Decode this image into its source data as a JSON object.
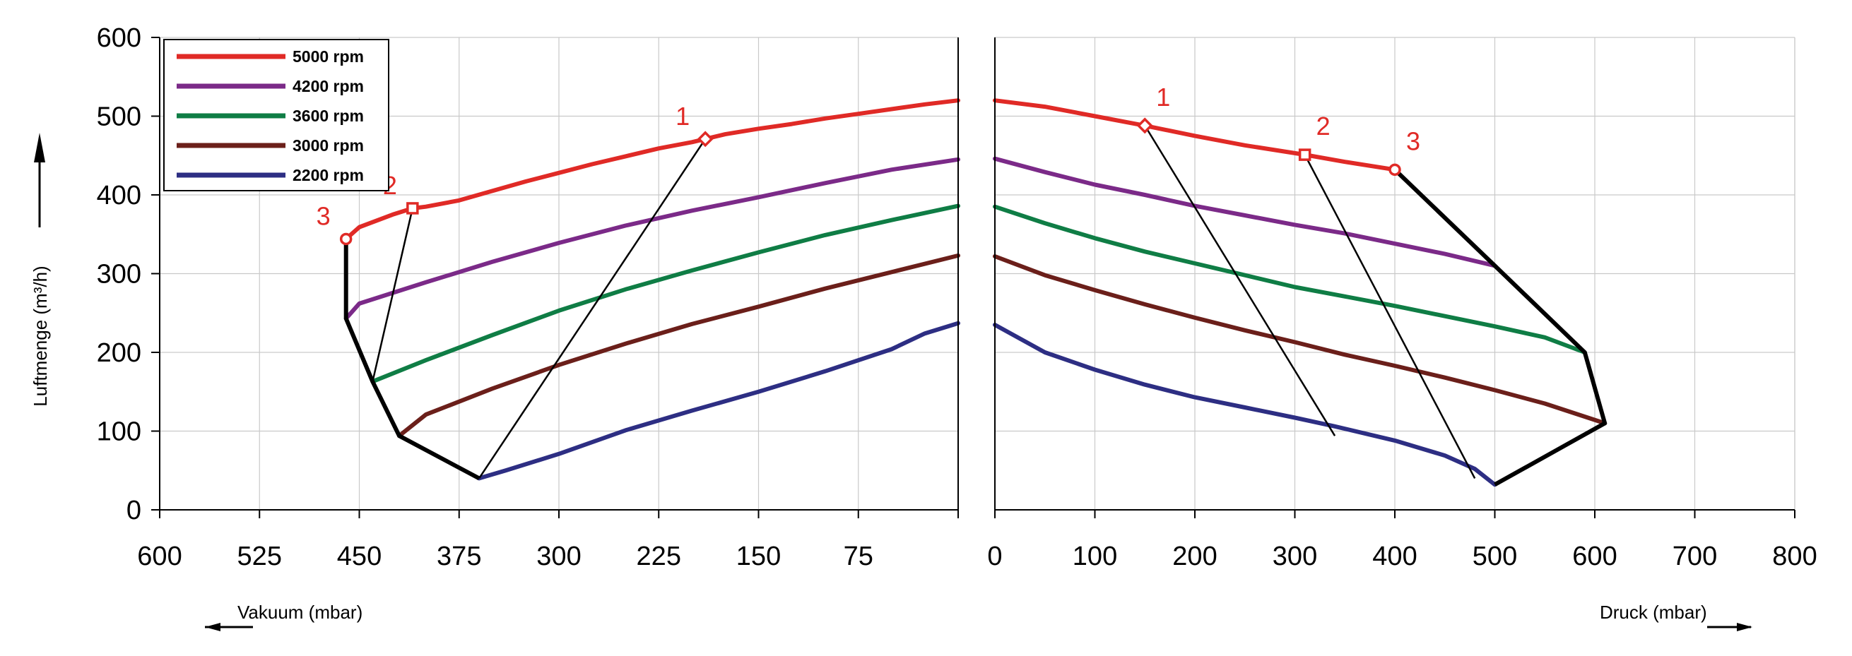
{
  "chart_data": {
    "type": "line",
    "ylabel": "Luftmenge (m³/h)",
    "ylim": [
      0,
      600
    ],
    "yticks": [
      "0",
      "100",
      "200",
      "300",
      "400",
      "500",
      "600"
    ],
    "grid": true,
    "legend_position": "top-left",
    "panels": [
      {
        "xlabel": "Vakuum (mbar)",
        "xlim": [
          600,
          0
        ],
        "xticks": [
          "600",
          "525",
          "450",
          "375",
          "300",
          "225",
          "150",
          "75"
        ],
        "series": [
          {
            "name": "5000 rpm",
            "color": "#e02a26",
            "x": [
              0,
              25,
              50,
              75,
              100,
              125,
              150,
              175,
              190,
              200,
              225,
              250,
              275,
              300,
              325,
              350,
              375,
              400,
              410,
              425,
              450,
              460
            ],
            "y": [
              520,
              515,
              509,
              503,
              497,
              490,
              484,
              477,
              471,
              467,
              459,
              449,
              439,
              428,
              417,
              405,
              393,
              385,
              383,
              375,
              359,
              344
            ]
          },
          {
            "name": "4200 rpm",
            "color": "#7b2a88",
            "x": [
              0,
              50,
              100,
              150,
              200,
              250,
              300,
              350,
              400,
              450,
              460
            ],
            "y": [
              445,
              432,
              415,
              397,
              380,
              361,
              339,
              315,
              289,
              262,
              243
            ]
          },
          {
            "name": "3600 rpm",
            "color": "#0f7d45",
            "x": [
              0,
              50,
              100,
              150,
              200,
              250,
              300,
              350,
              400,
              440
            ],
            "y": [
              386,
              368,
              349,
              327,
              304,
              280,
              253,
              222,
              190,
              163
            ]
          },
          {
            "name": "3000 rpm",
            "color": "#6b1f1a",
            "x": [
              0,
              50,
              100,
              150,
              200,
              250,
              300,
              350,
              400,
              420
            ],
            "y": [
              323,
              302,
              281,
              258,
              236,
              211,
              184,
              154,
              121,
              94
            ]
          },
          {
            "name": "2200 rpm",
            "color": "#2d2e83",
            "x": [
              0,
              25,
              50,
              100,
              150,
              200,
              250,
              300,
              340,
              360
            ],
            "y": [
              237,
              224,
              204,
              176,
              150,
              126,
              101,
              71,
              50,
              40
            ]
          }
        ],
        "points": [
          {
            "label": "1",
            "marker": "diamond",
            "x": 190,
            "y": 471
          },
          {
            "label": "2",
            "marker": "square",
            "x": 410,
            "y": 383
          },
          {
            "label": "3",
            "marker": "circle",
            "x": 460,
            "y": 344
          }
        ],
        "thin_lines": [
          [
            [
              190,
              471
            ],
            [
              360,
              40
            ]
          ],
          [
            [
              410,
              383
            ],
            [
              440,
              163
            ]
          ]
        ],
        "envelope": [
          [
            460,
            344
          ],
          [
            460,
            243
          ],
          [
            440,
            163
          ],
          [
            420,
            94
          ],
          [
            360,
            40
          ]
        ]
      },
      {
        "xlabel": "Druck (mbar)",
        "xlim": [
          0,
          800
        ],
        "xticks": [
          "0",
          "100",
          "200",
          "300",
          "400",
          "500",
          "600",
          "700",
          "800"
        ],
        "series": [
          {
            "name": "5000 rpm",
            "color": "#e02a26",
            "x": [
              0,
              50,
              100,
              150,
              200,
              250,
              310,
              350,
              400
            ],
            "y": [
              520,
              512,
              500,
              488,
              475,
              463,
              451,
              442,
              432
            ]
          },
          {
            "name": "4200 rpm",
            "color": "#7b2a88",
            "x": [
              0,
              50,
              100,
              150,
              200,
              250,
              300,
              350,
              400,
              450,
              500
            ],
            "y": [
              446,
              429,
              413,
              400,
              386,
              374,
              362,
              351,
              338,
              325,
              310
            ]
          },
          {
            "name": "3600 rpm",
            "color": "#0f7d45",
            "x": [
              0,
              50,
              100,
              150,
              200,
              250,
              300,
              350,
              400,
              450,
              500,
              550,
              590
            ],
            "y": [
              385,
              364,
              345,
              328,
              313,
              298,
              283,
              271,
              259,
              246,
              233,
              219,
              200
            ]
          },
          {
            "name": "3000 rpm",
            "color": "#6b1f1a",
            "x": [
              0,
              50,
              100,
              150,
              200,
              250,
              300,
              350,
              400,
              450,
              500,
              550,
              610
            ],
            "y": [
              322,
              298,
              279,
              261,
              244,
              228,
              213,
              197,
              183,
              168,
              152,
              135,
              110
            ]
          },
          {
            "name": "2200 rpm",
            "color": "#2d2e83",
            "x": [
              0,
              50,
              100,
              150,
              200,
              250,
              300,
              340,
              400,
              450,
              480,
              500
            ],
            "y": [
              235,
              200,
              178,
              159,
              143,
              130,
              117,
              106,
              88,
              69,
              52,
              32
            ]
          }
        ],
        "points": [
          {
            "label": "1",
            "marker": "diamond",
            "x": 150,
            "y": 488
          },
          {
            "label": "2",
            "marker": "square",
            "x": 310,
            "y": 451
          },
          {
            "label": "3",
            "marker": "circle",
            "x": 400,
            "y": 432
          }
        ],
        "thin_lines": [
          [
            [
              150,
              488
            ],
            [
              340,
              94
            ]
          ],
          [
            [
              310,
              451
            ],
            [
              480,
              40
            ]
          ]
        ],
        "envelope": [
          [
            400,
            432
          ],
          [
            500,
            310
          ],
          [
            590,
            200
          ],
          [
            610,
            110
          ],
          [
            500,
            32
          ]
        ]
      }
    ]
  }
}
